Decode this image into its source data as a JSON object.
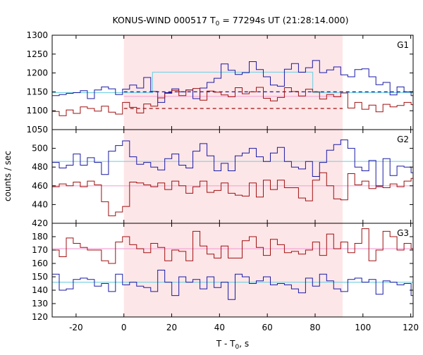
{
  "chart_data": {
    "type": "line",
    "title": {
      "prefix": "KONUS-WIND 000517 T",
      "sub": "0",
      "suffix": " = 77294s UT (21:28:14.000)"
    },
    "xlabel": {
      "prefix": "T - T",
      "sub": "0",
      "suffix": ", s"
    },
    "ylabel": "counts / sec",
    "xlim": [
      -30,
      121
    ],
    "xticks": [
      -20,
      0,
      20,
      40,
      60,
      80,
      100,
      120
    ],
    "highlight_interval": [
      0,
      91.5
    ],
    "colors": {
      "highlight": "#fde6e8",
      "blue": "#1a1aa6",
      "red": "#a01010",
      "cyan": "#7ad4e4",
      "pink": "#f4a6d6",
      "blue_dashed": "#1a1aa6",
      "red_dashed": "#a01010"
    },
    "panels": [
      {
        "label": "G1",
        "ylim": [
          1050,
          1300
        ],
        "yticks": [
          1050,
          1100,
          1150,
          1200,
          1250,
          1300
        ],
        "backgrounds": [
          {
            "color": "cyan",
            "dashed": false,
            "points": [
              [
                -30,
                1148
              ],
              [
                12,
                1148
              ],
              [
                12,
                1202
              ],
              [
                79,
                1202
              ],
              [
                79,
                1148
              ],
              [
                121,
                1148
              ]
            ]
          },
          {
            "color": "pink",
            "dashed": false,
            "points": [
              [
                0,
                1138
              ],
              [
                91.5,
                1138
              ]
            ]
          },
          {
            "color": "blue_dashed",
            "dashed": true,
            "points": [
              [
                0,
                1150
              ],
              [
                121,
                1150
              ]
            ]
          },
          {
            "color": "red_dashed",
            "dashed": true,
            "points": [
              [
                0,
                1106
              ],
              [
                91.5,
                1106
              ]
            ]
          }
        ],
        "series": [
          {
            "color": "blue",
            "x0": -30,
            "dx": 2.944,
            "values": [
              1140,
              1143,
              1146,
              1148,
              1153,
              1132,
              1155,
              1163,
              1158,
              1143,
              1157,
              1168,
              1160,
              1188,
              1151,
              1122,
              1148,
              1158,
              1150,
              1155,
              1132,
              1160,
              1175,
              1186,
              1224,
              1207,
              1196,
              1201,
              1230,
              1209,
              1190,
              1168,
              1165,
              1210,
              1225,
              1202,
              1214,
              1233,
              1201,
              1208,
              1216,
              1195,
              1190,
              1209,
              1211,
              1190,
              1169,
              1175,
              1142,
              1163,
              1150,
              1140
            ]
          },
          {
            "color": "red",
            "x0": -30,
            "dx": 2.944,
            "values": [
              1098,
              1087,
              1102,
              1093,
              1110,
              1106,
              1099,
              1112,
              1096,
              1091,
              1122,
              1109,
              1094,
              1118,
              1112,
              1134,
              1146,
              1154,
              1140,
              1155,
              1159,
              1128,
              1152,
              1149,
              1142,
              1137,
              1161,
              1145,
              1150,
              1162,
              1133,
              1126,
              1135,
              1161,
              1151,
              1139,
              1157,
              1150,
              1131,
              1143,
              1137,
              1147,
              1107,
              1122,
              1104,
              1115,
              1097,
              1117,
              1110,
              1114,
              1122,
              1116
            ]
          }
        ]
      },
      {
        "label": "G2",
        "ylim": [
          420,
          520
        ],
        "yticks": [
          420,
          440,
          460,
          480,
          500
        ],
        "backgrounds": [
          {
            "color": "cyan",
            "dashed": false,
            "points": [
              [
                -30,
                486
              ],
              [
                121,
                486
              ]
            ]
          },
          {
            "color": "pink",
            "dashed": false,
            "points": [
              [
                -30,
                460
              ],
              [
                121,
                460
              ]
            ]
          }
        ],
        "series": [
          {
            "color": "blue",
            "x0": -30,
            "dx": 2.944,
            "values": [
              485,
              479,
              482,
              494,
              482,
              490,
              485,
              472,
              497,
              503,
              508,
              491,
              483,
              485,
              480,
              477,
              489,
              494,
              482,
              479,
              497,
              505,
              492,
              476,
              484,
              476,
              492,
              495,
              500,
              491,
              486,
              495,
              501,
              486,
              480,
              478,
              486,
              470,
              485,
              498,
              504,
              509,
              500,
              480,
              476,
              487,
              460,
              489,
              471,
              481,
              480,
              474
            ]
          },
          {
            "color": "red",
            "x0": -30,
            "dx": 2.944,
            "values": [
              459,
              462,
              460,
              464,
              459,
              465,
              461,
              443,
              428,
              432,
              438,
              464,
              463,
              461,
              459,
              463,
              456,
              465,
              460,
              452,
              459,
              465,
              453,
              455,
              463,
              452,
              450,
              449,
              463,
              448,
              466,
              456,
              466,
              458,
              458,
              447,
              444,
              466,
              474,
              460,
              446,
              445,
              473,
              461,
              465,
              457,
              459,
              458,
              462,
              459,
              465,
              468
            ]
          }
        ]
      },
      {
        "label": "G3",
        "ylim": [
          120,
          190
        ],
        "yticks": [
          120,
          130,
          140,
          150,
          160,
          170,
          180
        ],
        "backgrounds": [
          {
            "color": "cyan",
            "dashed": false,
            "points": [
              [
                -30,
                146
              ],
              [
                121,
                146
              ]
            ]
          },
          {
            "color": "pink",
            "dashed": false,
            "points": [
              [
                -30,
                171
              ],
              [
                121,
                171
              ]
            ]
          }
        ],
        "series": [
          {
            "color": "blue",
            "x0": -30,
            "dx": 2.944,
            "values": [
              152,
              140,
              141,
              148,
              149,
              148,
              143,
              145,
              139,
              152,
              144,
              146,
              143,
              142,
              139,
              155,
              146,
              136,
              150,
              146,
              148,
              141,
              150,
              142,
              146,
              133,
              152,
              150,
              145,
              147,
              150,
              144,
              145,
              144,
              141,
              138,
              149,
              143,
              152,
              147,
              141,
              139,
              148,
              149,
              146,
              148,
              137,
              147,
              146,
              144,
              145,
              136
            ]
          },
          {
            "color": "red",
            "x0": -30,
            "dx": 2.944,
            "values": [
              170,
              165,
              179,
              175,
              172,
              170,
              170,
              162,
              160,
              176,
              180,
              174,
              171,
              168,
              175,
              172,
              162,
              170,
              169,
              162,
              184,
              173,
              167,
              164,
              173,
              164,
              164,
              177,
              180,
              172,
              166,
              178,
              174,
              168,
              169,
              167,
              170,
              176,
              166,
              182,
              171,
              176,
              168,
              175,
              186,
              162,
              170,
              184,
              180,
              170,
              175,
              171
            ]
          }
        ]
      }
    ]
  }
}
